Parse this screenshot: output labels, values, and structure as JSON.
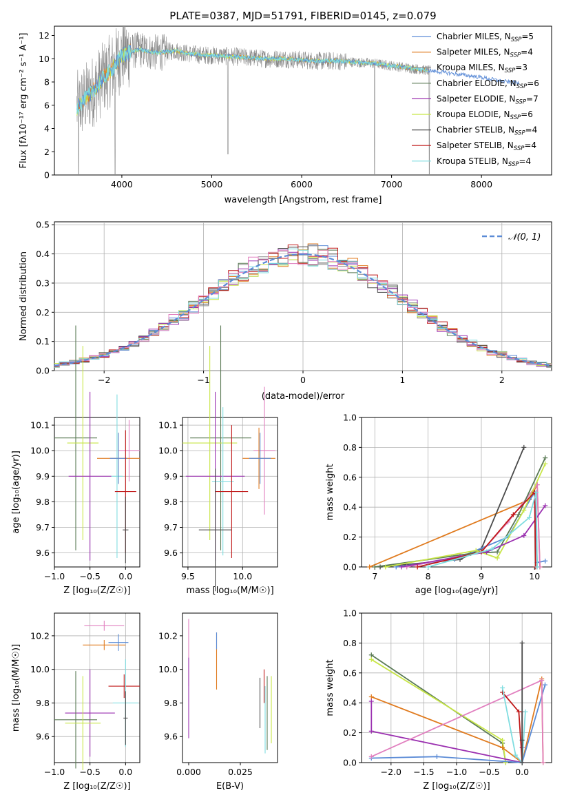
{
  "colors": {
    "chabrier_miles": "#5b8bd6",
    "salpeter_miles": "#e07b1f",
    "kroupa_miles": "#8a8a8a",
    "chabrier_elodie": "#5a7a55",
    "salpeter_elodie": "#9b30b0",
    "kroupa_elodie": "#c8e646",
    "chabrier_stelib": "#4a4a4a",
    "salpeter_stelib": "#c01818",
    "kroupa_stelib": "#7fdde0",
    "pink": "#e17fbf",
    "normal": "#5b8bd6"
  },
  "chart_data": [
    {
      "type": "line",
      "id": "spectrum",
      "title": "PLATE=0387, MJD=51791, FIBERID=0145, z=0.079",
      "xlabel": "wavelength [Angstrom, rest frame]",
      "ylabel": "Flux [fλ10⁻¹⁷ erg cm⁻² s⁻¹ A⁻¹]",
      "xlim": [
        3250,
        8780
      ],
      "ylim": [
        0,
        12.8
      ],
      "xticks": [
        4000,
        5000,
        6000,
        7000,
        8000
      ],
      "yticks": [
        0,
        2,
        4,
        6,
        8,
        10,
        12
      ],
      "grid": false,
      "legend_position": "top-right",
      "legend": [
        {
          "base": "Chabrier MILES, N",
          "n": "=5",
          "color": "#5b8bd6"
        },
        {
          "base": "Salpeter MILES, N",
          "n": "=4",
          "color": "#e07b1f"
        },
        {
          "base": "Kroupa MILES, N",
          "n": "=3",
          "color": "#8a8a8a"
        },
        {
          "base": "Chabrier ELODIE, N",
          "n": "=6",
          "color": "#5a7a55"
        },
        {
          "base": "Salpeter ELODIE, N",
          "n": "=7",
          "color": "#9b30b0"
        },
        {
          "base": "Kroupa ELODIE, N",
          "n": "=6",
          "color": "#c8e646"
        },
        {
          "base": "Chabrier STELIB, N",
          "n": "=4",
          "color": "#4a4a4a"
        },
        {
          "base": "Salpeter STELIB, N",
          "n": "=4",
          "color": "#c01818"
        },
        {
          "base": "Kroupa STELIB, N",
          "n": "=4",
          "color": "#7fdde0"
        }
      ],
      "legend_sub": "SSP",
      "continuum": {
        "x": [
          3500,
          3600,
          3700,
          3800,
          3900,
          4000,
          4100,
          4200,
          4300,
          4400,
          4500,
          4600,
          4700,
          4800,
          4900,
          5000,
          5200,
          5400,
          5600,
          5800,
          6000,
          6200,
          6400,
          6600,
          6800,
          7000,
          7200,
          7400,
          7600,
          7800,
          8000,
          8200,
          8400
        ],
        "y": [
          5.8,
          6.6,
          7.4,
          8.4,
          9.2,
          10.3,
          10.6,
          10.8,
          10.6,
          10.5,
          10.6,
          10.7,
          10.5,
          10.4,
          10.3,
          10.3,
          10.2,
          10.1,
          10.0,
          10.0,
          9.9,
          9.8,
          9.8,
          9.7,
          9.6,
          9.4,
          9.2,
          9.0,
          8.8,
          8.6,
          8.4,
          8.1,
          7.9
        ]
      },
      "drops": [
        {
          "x": 3520,
          "y": 0.0
        },
        {
          "x": 3925,
          "y": 0.0
        },
        {
          "x": 5180,
          "y": 1.8
        },
        {
          "x": 6810,
          "y": 0.0
        },
        {
          "x": 7420,
          "y": 0.0
        }
      ]
    },
    {
      "type": "histogram",
      "id": "residuals",
      "xlabel": "(data-model)/error",
      "ylabel": "Normed distribution",
      "xlim": [
        -2.5,
        2.5
      ],
      "ylim": [
        0,
        0.51
      ],
      "xticks": [
        -2,
        -1,
        0,
        1,
        2
      ],
      "yticks": [
        0.0,
        0.1,
        0.2,
        0.3,
        0.4,
        0.5
      ],
      "grid": true,
      "legend_position": "top-right",
      "legend": "𝒩(0, 1)"
    },
    {
      "type": "scatter",
      "id": "z_age",
      "xlabel": "Z [log₁₀(Z/Z☉)]",
      "ylabel": "age  [log₁₀(age/yr)]",
      "xlim": [
        -1.0,
        0.2
      ],
      "ylim": [
        9.545,
        10.13
      ],
      "xticks": [
        -1.0,
        -0.5,
        0.0
      ],
      "yticks": [
        9.6,
        9.7,
        9.8,
        9.9,
        10.0,
        10.1
      ],
      "grid": true,
      "points": [
        {
          "x": -0.7,
          "y": 10.05,
          "xerr": 0.3,
          "yerr": 0.44,
          "color": "#5a7a55"
        },
        {
          "x": -0.6,
          "y": 10.03,
          "xerr": 0.22,
          "yerr": 0.38,
          "color": "#c8e646"
        },
        {
          "x": -0.5,
          "y": 9.9,
          "xerr": 0.3,
          "yerr": 0.33,
          "color": "#9b30b0"
        },
        {
          "x": -0.12,
          "y": 9.9,
          "xerr": 0.08,
          "yerr": 0.32,
          "color": "#7fdde0"
        },
        {
          "x": 0.05,
          "y": 10.0,
          "xerr": 0.15,
          "yerr": 0.12,
          "color": "#e17fbf"
        },
        {
          "x": -0.1,
          "y": 9.97,
          "xerr": 0.3,
          "yerr": 0.1,
          "color": "#e07b1f"
        },
        {
          "x": -0.1,
          "y": 9.97,
          "xerr": 0.12,
          "yerr": 0.1,
          "color": "#5b8bd6"
        },
        {
          "x": 0.0,
          "y": 9.84,
          "xerr": 0.15,
          "yerr": 0.24,
          "color": "#c01818"
        },
        {
          "x": 0.0,
          "y": 9.69,
          "xerr": 0.04,
          "yerr": 0.13,
          "color": "#4a4a4a"
        }
      ]
    },
    {
      "type": "scatter",
      "id": "mass_age",
      "xlabel": "mass [log₁₀(M/M☉)]",
      "ylabel": "",
      "xlim": [
        9.45,
        10.32
      ],
      "ylim": [
        9.545,
        10.13
      ],
      "xticks": [
        9.5,
        10.0
      ],
      "yticks": [
        9.6,
        9.7,
        9.8,
        9.9,
        10.0,
        10.1
      ],
      "grid": true,
      "points": [
        {
          "x": 9.8,
          "y": 10.05,
          "xerr": 0.28,
          "yerr": 0.44,
          "color": "#5a7a55"
        },
        {
          "x": 9.7,
          "y": 10.03,
          "xerr": 0.25,
          "yerr": 0.38,
          "color": "#c8e646"
        },
        {
          "x": 9.75,
          "y": 9.9,
          "xerr": 0.27,
          "yerr": 0.33,
          "color": "#9b30b0"
        },
        {
          "x": 9.82,
          "y": 9.88,
          "xerr": 0.1,
          "yerr": 0.29,
          "color": "#7fdde0"
        },
        {
          "x": 10.2,
          "y": 10.0,
          "xerr": 0.1,
          "yerr": 0.25,
          "color": "#e17fbf"
        },
        {
          "x": 10.15,
          "y": 9.97,
          "xerr": 0.15,
          "yerr": 0.12,
          "color": "#e07b1f"
        },
        {
          "x": 10.16,
          "y": 9.97,
          "xerr": 0.1,
          "yerr": 0.1,
          "color": "#5b8bd6"
        },
        {
          "x": 9.9,
          "y": 9.84,
          "xerr": 0.15,
          "yerr": 0.26,
          "color": "#c01818"
        },
        {
          "x": 9.75,
          "y": 9.69,
          "xerr": 0.15,
          "yerr": 0.24,
          "color": "#4a4a4a"
        }
      ]
    },
    {
      "type": "line",
      "id": "age_weight",
      "xlabel": "age  [log₁₀(age/yr)]",
      "ylabel": "mass weight",
      "xlim": [
        6.75,
        10.32
      ],
      "ylim": [
        0,
        1.0
      ],
      "xticks": [
        7,
        8,
        9,
        10
      ],
      "yticks": [
        0.0,
        0.2,
        0.4,
        0.6,
        0.8,
        1.0
      ],
      "grid": true,
      "series": [
        {
          "color": "#e07b1f",
          "x": [
            6.9,
            9.9,
            10.05,
            10.1
          ],
          "y": [
            0.0,
            0.45,
            0.55,
            0.0
          ]
        },
        {
          "color": "#4a4a4a",
          "x": [
            7.1,
            8.6,
            9.0,
            9.8
          ],
          "y": [
            0.0,
            0.05,
            0.12,
            0.8
          ]
        },
        {
          "color": "#5b8bd6",
          "x": [
            7.4,
            8.5,
            9.5,
            10.0,
            10.05,
            10.2
          ],
          "y": [
            0.0,
            0.05,
            0.2,
            0.5,
            0.03,
            0.04
          ]
        },
        {
          "color": "#e17fbf",
          "x": [
            7.6,
            9.0,
            9.5,
            10.05,
            10.1
          ],
          "y": [
            0.0,
            0.1,
            0.3,
            0.55,
            0.0
          ]
        },
        {
          "color": "#5a7a55",
          "x": [
            7.0,
            8.8,
            9.3,
            9.7,
            10.2
          ],
          "y": [
            0.0,
            0.09,
            0.1,
            0.35,
            0.73
          ]
        },
        {
          "color": "#c8e646",
          "x": [
            7.2,
            8.9,
            9.3,
            9.8,
            10.2
          ],
          "y": [
            0.0,
            0.11,
            0.06,
            0.38,
            0.69
          ]
        },
        {
          "color": "#9b30b0",
          "x": [
            7.5,
            8.6,
            9.1,
            9.8,
            10.2
          ],
          "y": [
            0.0,
            0.07,
            0.1,
            0.21,
            0.41
          ]
        },
        {
          "color": "#c01818",
          "x": [
            7.8,
            9.0,
            9.6,
            10.0,
            10.02
          ],
          "y": [
            0.0,
            0.1,
            0.35,
            0.5,
            0.0
          ]
        },
        {
          "color": "#7fdde0",
          "x": [
            8.0,
            9.2,
            9.9,
            10.03,
            10.05
          ],
          "y": [
            0.0,
            0.12,
            0.33,
            0.5,
            0.0
          ]
        }
      ]
    },
    {
      "type": "scatter",
      "id": "z_mass",
      "xlabel": "Z [log₁₀(Z/Z☉)]",
      "ylabel": "mass [log₁₀(M/M☉)]",
      "xlim": [
        -1.0,
        0.2
      ],
      "ylim": [
        9.445,
        10.335
      ],
      "xticks": [
        -1.0,
        -0.5,
        0.0
      ],
      "yticks": [
        9.6,
        9.8,
        10.0,
        10.2
      ],
      "grid": true,
      "points": [
        {
          "x": -0.3,
          "y": 10.26,
          "xerr": 0.28,
          "yerr": 0.03,
          "color": "#e17fbf"
        },
        {
          "x": -0.3,
          "y": 10.145,
          "xerr": 0.3,
          "yerr": 0.03,
          "color": "#e07b1f"
        },
        {
          "x": -0.1,
          "y": 10.16,
          "xerr": 0.14,
          "yerr": 0.05,
          "color": "#5b8bd6"
        },
        {
          "x": -0.02,
          "y": 9.9,
          "xerr": 0.22,
          "yerr": 0.07,
          "color": "#c01818"
        },
        {
          "x": 0.0,
          "y": 9.8,
          "xerr": 0.18,
          "yerr": 0.26,
          "color": "#7fdde0"
        },
        {
          "x": -0.5,
          "y": 9.74,
          "xerr": 0.35,
          "yerr": 0.26,
          "color": "#9b30b0"
        },
        {
          "x": -0.7,
          "y": 9.7,
          "xerr": 0.3,
          "yerr": 0.29,
          "color": "#5a7a55"
        },
        {
          "x": -0.6,
          "y": 9.68,
          "xerr": 0.25,
          "yerr": 0.28,
          "color": "#c8e646"
        },
        {
          "x": 0.0,
          "y": 9.71,
          "xerr": 0.03,
          "yerr": 0.16,
          "color": "#4a4a4a"
        }
      ]
    },
    {
      "type": "scatter",
      "id": "ebv_mass",
      "xlabel": "E(B-V)",
      "ylabel": "",
      "xlim": [
        -0.003,
        0.043
      ],
      "ylim": [
        9.445,
        10.335
      ],
      "xticks": [
        0.0,
        0.025
      ],
      "xtick_labels": [
        "0.000",
        "0.025"
      ],
      "yticks": [
        9.6,
        9.8,
        10.0,
        10.2
      ],
      "grid": false,
      "points": [
        {
          "x": 0.0,
          "y": 10.1,
          "xerr": 0,
          "yerr": 0.2,
          "color": "#e17fbf"
        },
        {
          "x": 0.0,
          "y": 9.83,
          "xerr": 0,
          "yerr": 0.24,
          "color": "#9b30b0"
        },
        {
          "x": 0.0135,
          "y": 10.05,
          "xerr": 0,
          "yerr": 0.17,
          "color": "#e07b1f"
        },
        {
          "x": 0.0135,
          "y": 10.17,
          "xerr": 0,
          "yerr": 0.05,
          "color": "#5b8bd6"
        },
        {
          "x": 0.0345,
          "y": 9.8,
          "xerr": 0,
          "yerr": 0.15,
          "color": "#4a4a4a"
        },
        {
          "x": 0.0365,
          "y": 9.9,
          "xerr": 0,
          "yerr": 0.1,
          "color": "#c01818"
        },
        {
          "x": 0.037,
          "y": 9.7,
          "xerr": 0,
          "yerr": 0.2,
          "color": "#7fdde0"
        },
        {
          "x": 0.038,
          "y": 9.74,
          "xerr": 0,
          "yerr": 0.22,
          "color": "#5a7a55"
        },
        {
          "x": 0.04,
          "y": 9.76,
          "xerr": 0,
          "yerr": 0.2,
          "color": "#c8e646"
        }
      ]
    },
    {
      "type": "line",
      "id": "z_weight",
      "xlabel": "Z [log₁₀(Z/Z☉)]",
      "ylabel": "mass weight",
      "xlim": [
        -2.45,
        0.45
      ],
      "ylim": [
        0,
        1.0
      ],
      "xticks": [
        -2.0,
        -1.5,
        -1.0,
        -0.5,
        0.0
      ],
      "yticks": [
        0.0,
        0.2,
        0.4,
        0.6,
        0.8,
        1.0
      ],
      "grid": true,
      "series": [
        {
          "color": "#5a7a55",
          "x": [
            -2.3,
            -0.3,
            -0.25
          ],
          "y": [
            0.72,
            0.13,
            0.0
          ]
        },
        {
          "color": "#c8e646",
          "x": [
            -2.3,
            -0.3,
            -0.25
          ],
          "y": [
            0.69,
            0.15,
            0.0
          ]
        },
        {
          "color": "#e07b1f",
          "x": [
            -2.3,
            -0.3,
            0.0,
            0.3,
            0.32
          ],
          "y": [
            0.44,
            0.1,
            0.0,
            0.56,
            0.0
          ]
        },
        {
          "color": "#9b30b0",
          "x": [
            -2.3,
            -2.3,
            0.0,
            0.0
          ],
          "y": [
            0.41,
            0.21,
            0.0,
            0.1
          ]
        },
        {
          "color": "#5b8bd6",
          "x": [
            -2.3,
            -1.3,
            0.0,
            0.35
          ],
          "y": [
            0.03,
            0.04,
            0.0,
            0.52
          ]
        },
        {
          "color": "#e17fbf",
          "x": [
            -2.3,
            0.3,
            0.32
          ],
          "y": [
            0.04,
            0.55,
            0.0
          ]
        },
        {
          "color": "#c01818",
          "x": [
            -0.3,
            -0.05,
            0.0,
            0.0
          ],
          "y": [
            0.47,
            0.34,
            0.0,
            0.34
          ]
        },
        {
          "color": "#7fdde0",
          "x": [
            -0.3,
            -0.1,
            0.0,
            0.05
          ],
          "y": [
            0.5,
            0.05,
            0.0,
            0.34
          ]
        },
        {
          "color": "#4a4a4a",
          "x": [
            0.0,
            0.0,
            0.0
          ],
          "y": [
            0.8,
            0.15,
            0.0
          ]
        }
      ]
    }
  ]
}
